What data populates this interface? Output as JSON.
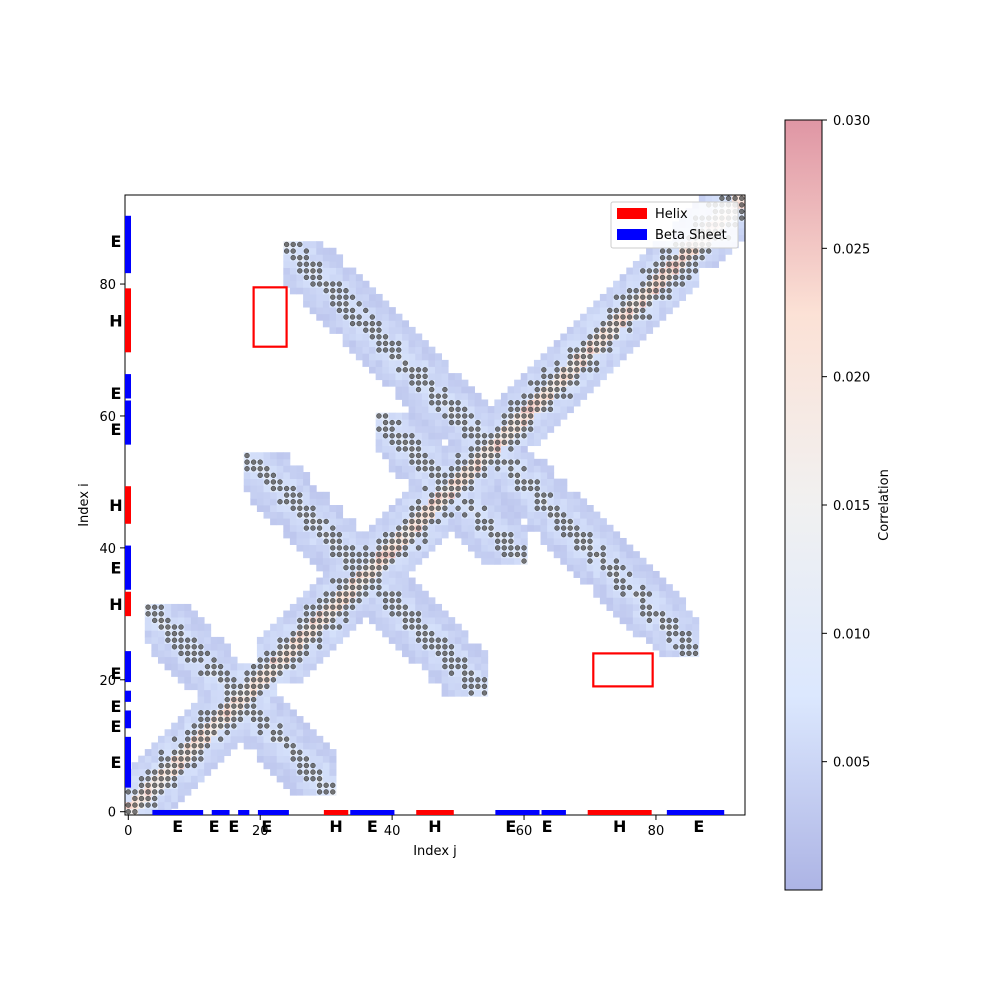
{
  "chart_data": {
    "type": "heatmap",
    "title": "",
    "xlabel": "Index j",
    "ylabel": "Index i",
    "colorbar_label": "Correlation",
    "n": 94,
    "xlim": [
      0,
      94
    ],
    "ylim": [
      0,
      94
    ],
    "x_ticks": [
      0,
      20,
      40,
      60,
      80
    ],
    "y_ticks": [
      0,
      20,
      40,
      60,
      80
    ],
    "value_range": [
      0.0,
      0.03
    ],
    "colorbar_ticks": [
      "0.005",
      "0.010",
      "0.015",
      "0.020",
      "0.025",
      "0.030"
    ],
    "colorbar_tick_values": [
      0.005,
      0.01,
      0.015,
      0.02,
      0.025,
      0.03
    ],
    "colormap": [
      "#3b4cc0",
      "#aac7fd",
      "#dddddd",
      "#f7b89c",
      "#b40426"
    ],
    "band_halfwidth": 7,
    "contact_threshold": 0.0066,
    "legend": {
      "position": "top-right",
      "items": [
        {
          "label": "Helix",
          "color": "#ff0000"
        },
        {
          "label": "Beta Sheet",
          "color": "#0000ff"
        }
      ]
    },
    "secondary_structure": [
      {
        "type": "E",
        "start": 4,
        "end": 12
      },
      {
        "type": "E",
        "start": 13,
        "end": 16
      },
      {
        "type": "E",
        "start": 17,
        "end": 19
      },
      {
        "type": "E",
        "start": 20,
        "end": 25
      },
      {
        "type": "H",
        "start": 30,
        "end": 34
      },
      {
        "type": "E",
        "start": 34,
        "end": 41
      },
      {
        "type": "H",
        "start": 44,
        "end": 50
      },
      {
        "type": "E",
        "start": 56,
        "end": 63
      },
      {
        "type": "E",
        "start": 63,
        "end": 67
      },
      {
        "type": "H",
        "start": 70,
        "end": 80
      },
      {
        "type": "E",
        "start": 82,
        "end": 91
      }
    ],
    "ss_labels": [
      {
        "text": "E",
        "pos": 8
      },
      {
        "text": "E",
        "pos": 13.5
      },
      {
        "text": "E",
        "pos": 16.5
      },
      {
        "text": "E",
        "pos": 21.5
      },
      {
        "text": "H",
        "pos": 32
      },
      {
        "text": "E",
        "pos": 37.5
      },
      {
        "text": "H",
        "pos": 47
      },
      {
        "text": "E",
        "pos": 58.5
      },
      {
        "text": "E",
        "pos": 64
      },
      {
        "text": "H",
        "pos": 75
      },
      {
        "text": "E",
        "pos": 87
      }
    ],
    "diagonal_blocks": [
      {
        "start": 0,
        "end": 22
      },
      {
        "start": 20,
        "end": 36
      },
      {
        "start": 36,
        "end": 58
      },
      {
        "start": 56,
        "end": 86
      },
      {
        "start": 83,
        "end": 94
      }
    ],
    "antidiagonal_sums": [
      34,
      72,
      98,
      110
    ],
    "antidiagonal_ranges": [
      {
        "from": 3,
        "to": 31
      },
      {
        "from": 18,
        "to": 54
      },
      {
        "from": 38,
        "to": 60
      },
      {
        "from": 24,
        "to": 86
      }
    ],
    "highlight_boxes": [
      {
        "x0": 19.5,
        "x1": 24.5,
        "y0": 71,
        "y1": 80
      },
      {
        "x0": 71,
        "x1": 80,
        "y0": 19.5,
        "y1": 24.5
      }
    ]
  }
}
